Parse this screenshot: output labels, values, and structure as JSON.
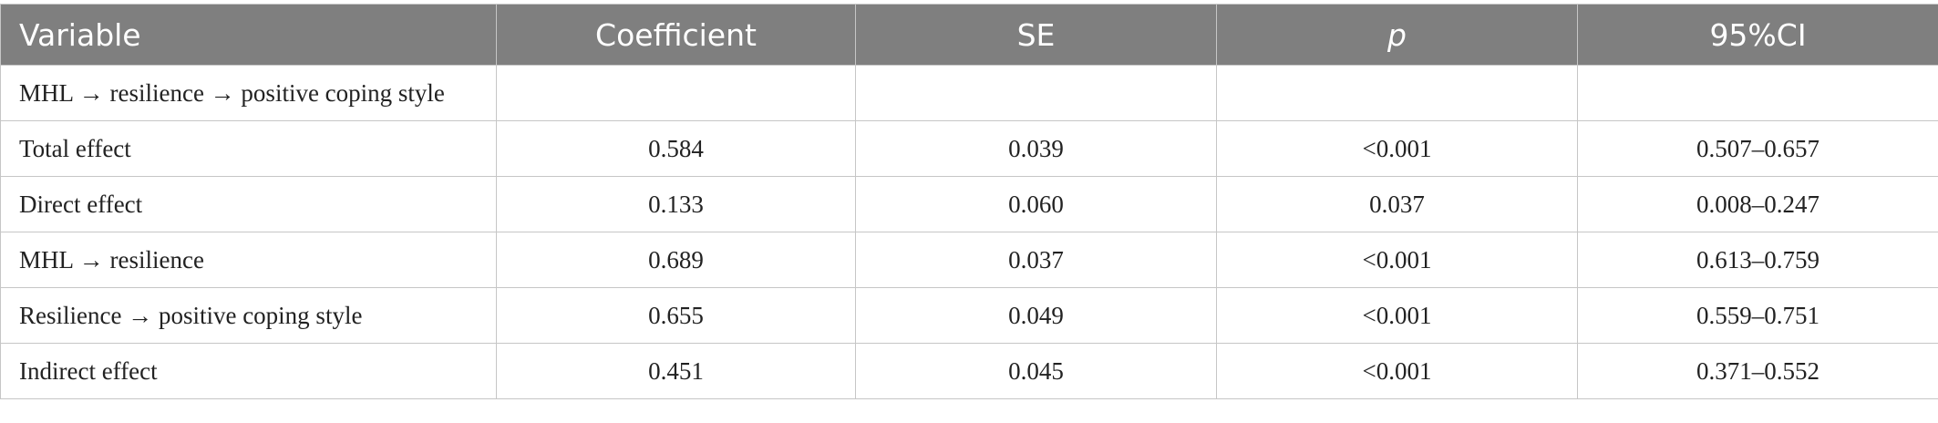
{
  "table": {
    "header": [
      "Variable",
      "Coefficient",
      "SE",
      "p",
      "95%CI"
    ],
    "rows": [
      [
        "MHL → resilience → positive coping style"
      ],
      [
        "Total effect",
        "0.584",
        "0.039",
        "<0.001",
        "0.507–0.657"
      ],
      [
        "Direct effect",
        "0.133",
        "0.060",
        "0.037",
        "0.008–0.247"
      ],
      [
        "MHL → resilience",
        "0.689",
        "0.037",
        "<0.001",
        "0.613–0.759"
      ],
      [
        "Resilience → positive coping style",
        "0.655",
        "0.049",
        "<0.001",
        "0.559–0.751"
      ],
      [
        "Indirect effect",
        "0.451",
        "0.045",
        "<0.001",
        "0.371–0.552"
      ]
    ]
  }
}
